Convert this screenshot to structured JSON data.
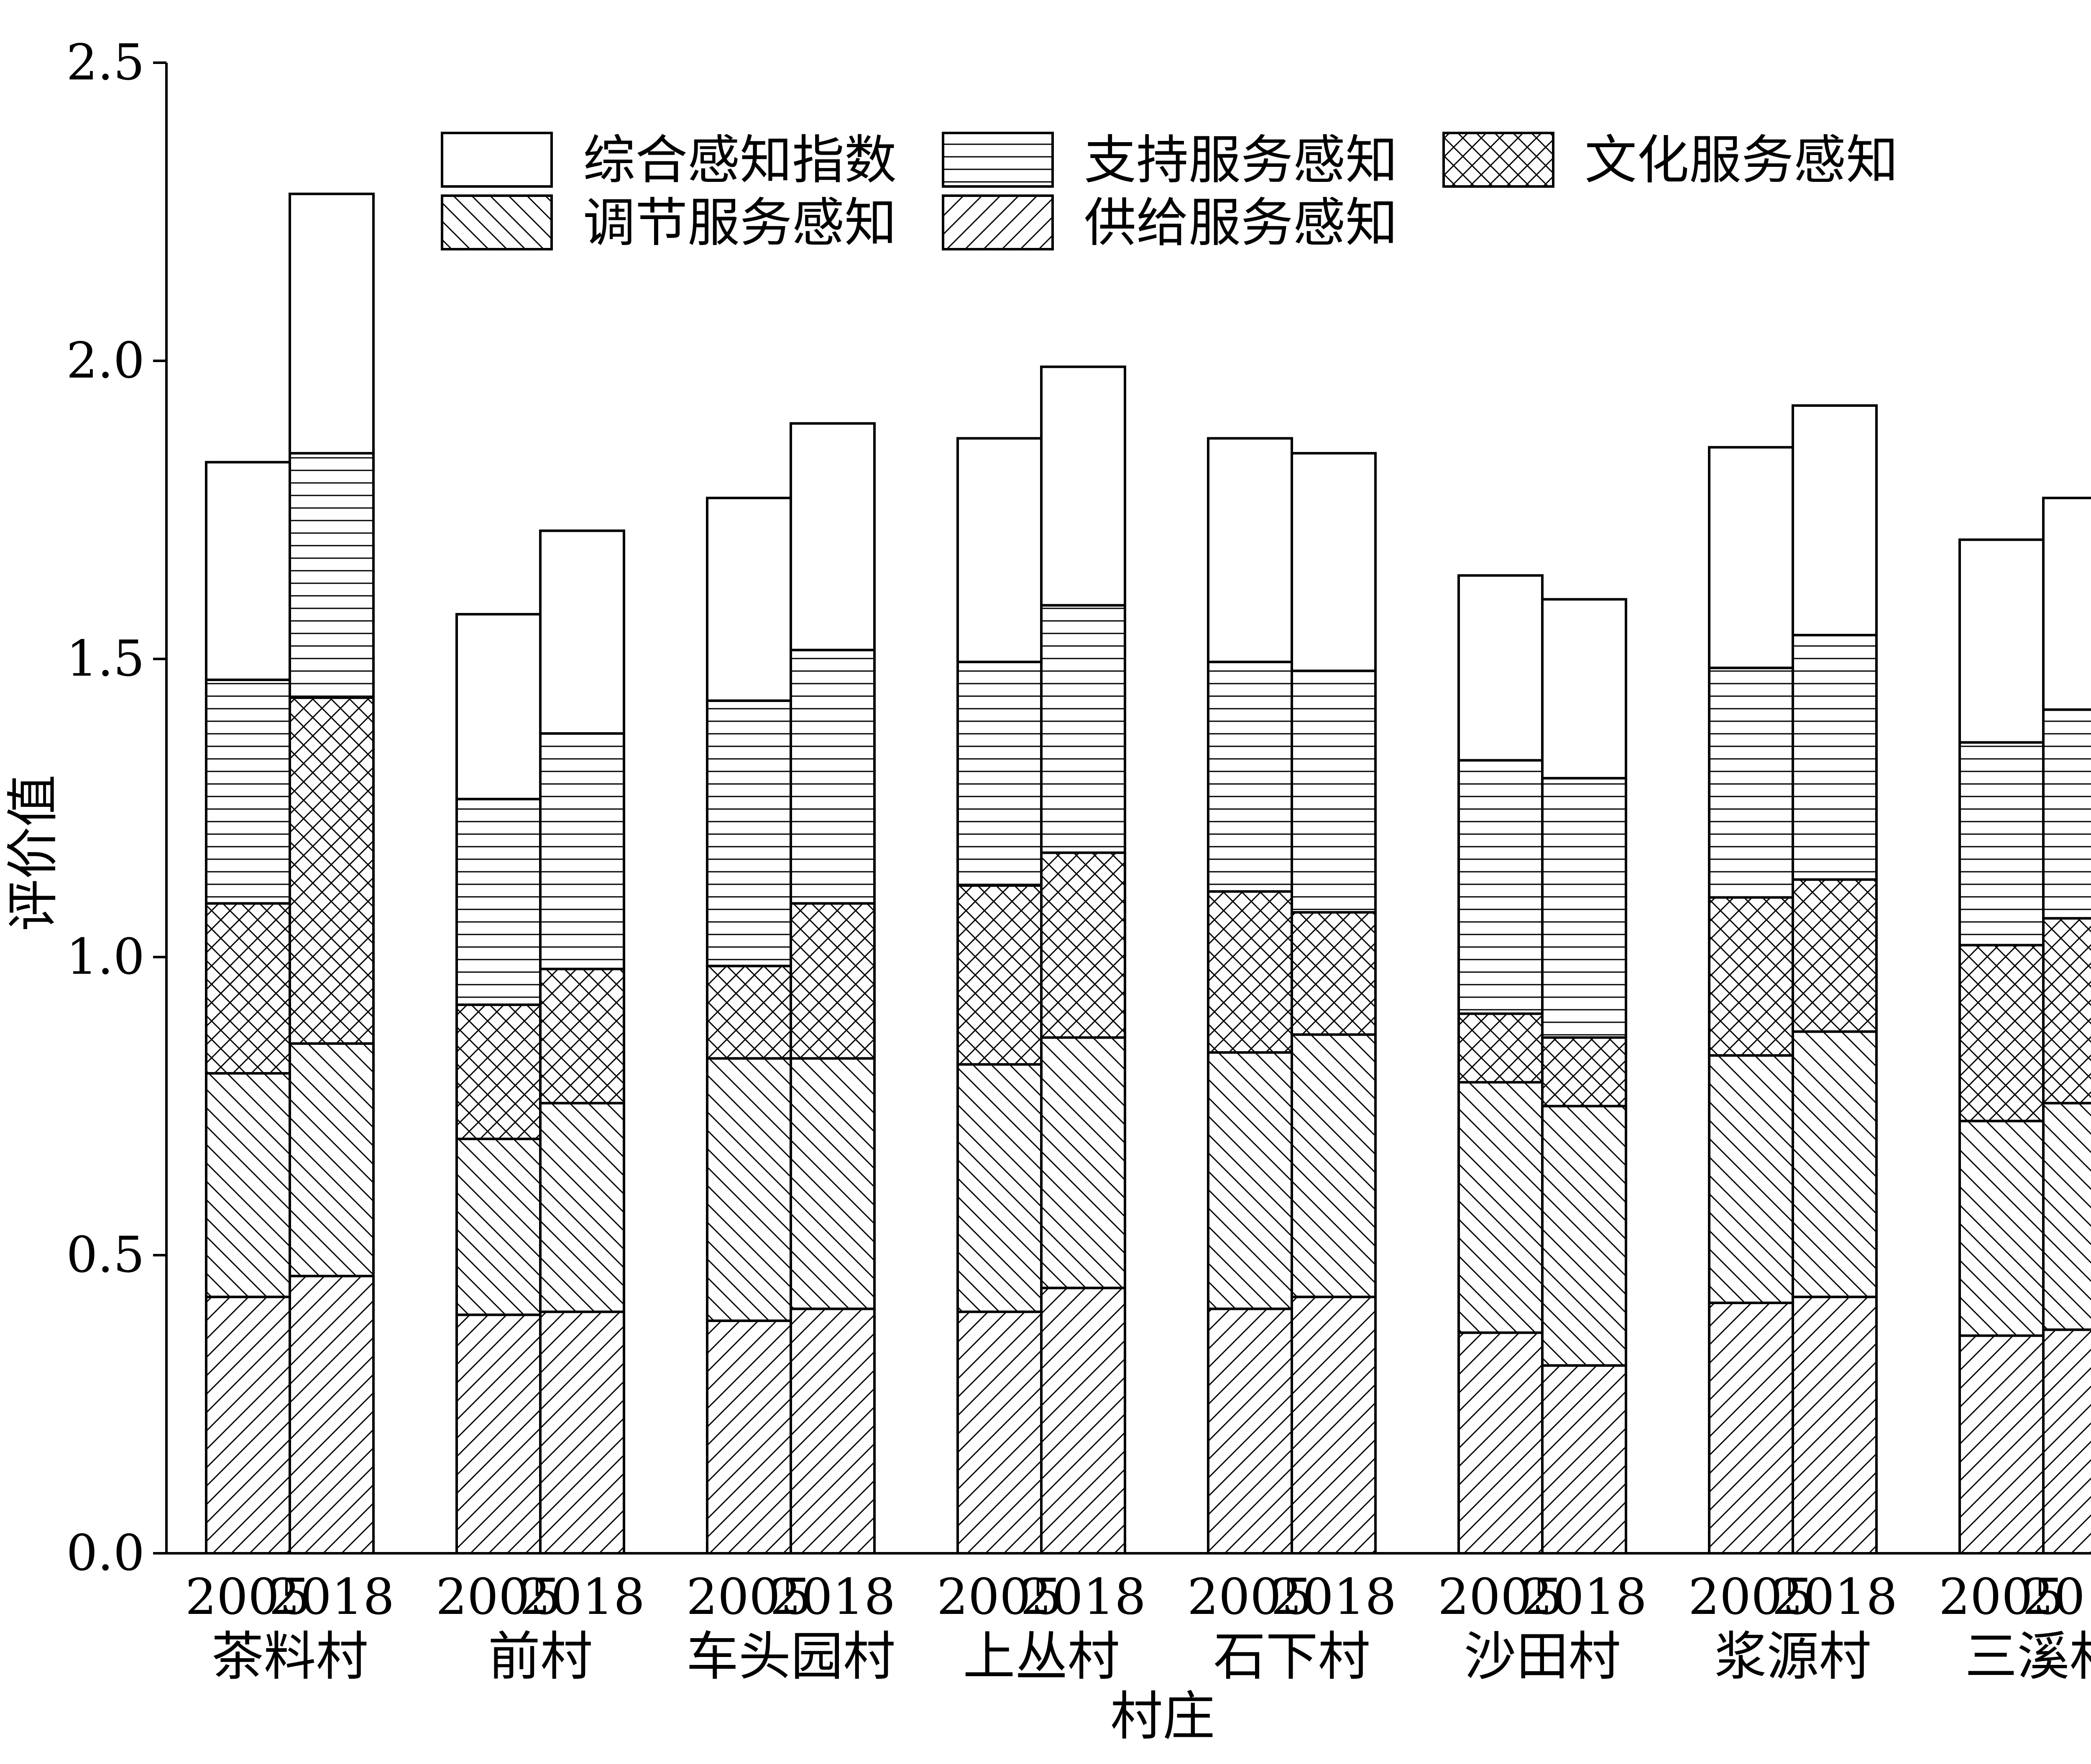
{
  "chart_data": {
    "type": "bar",
    "stacked": true,
    "title": "",
    "xlabel": "村庄",
    "ylabel": "评价值",
    "ylim": [
      0,
      2.5
    ],
    "yticks": [
      "0.0",
      "0.5",
      "1.0",
      "1.5",
      "2.0",
      "2.5"
    ],
    "grid": false,
    "legend_position": "top",
    "years": [
      "2005",
      "2018"
    ],
    "villages": [
      "茶料村",
      "前村",
      "车头园村",
      "上丛村",
      "石下村",
      "沙田村",
      "浆源村",
      "三溪村"
    ],
    "series": [
      {
        "name": "供给服务感知",
        "pattern": "diagonal-up",
        "values": [
          [
            0.43,
            0.465
          ],
          [
            0.4,
            0.405
          ],
          [
            0.39,
            0.41
          ],
          [
            0.405,
            0.445
          ],
          [
            0.41,
            0.43
          ],
          [
            0.37,
            0.315
          ],
          [
            0.42,
            0.43
          ],
          [
            0.365,
            0.375
          ]
        ]
      },
      {
        "name": "调节服务感知",
        "pattern": "diagonal-down",
        "values": [
          [
            0.375,
            0.39
          ],
          [
            0.295,
            0.35
          ],
          [
            0.44,
            0.42
          ],
          [
            0.415,
            0.42
          ],
          [
            0.43,
            0.44
          ],
          [
            0.42,
            0.435
          ],
          [
            0.415,
            0.445
          ],
          [
            0.36,
            0.38
          ]
        ]
      },
      {
        "name": "文化服务感知",
        "pattern": "crosshatch",
        "values": [
          [
            0.285,
            0.58
          ],
          [
            0.225,
            0.225
          ],
          [
            0.155,
            0.26
          ],
          [
            0.3,
            0.31
          ],
          [
            0.27,
            0.205
          ],
          [
            0.115,
            0.115
          ],
          [
            0.265,
            0.255
          ],
          [
            0.295,
            0.31
          ]
        ]
      },
      {
        "name": "支持服务感知",
        "pattern": "horizontal",
        "values": [
          [
            0.375,
            0.41
          ],
          [
            0.345,
            0.395
          ],
          [
            0.445,
            0.425
          ],
          [
            0.375,
            0.415
          ],
          [
            0.385,
            0.405
          ],
          [
            0.425,
            0.435
          ],
          [
            0.385,
            0.41
          ],
          [
            0.34,
            0.35
          ]
        ]
      },
      {
        "name": "综合感知指数",
        "pattern": "blank",
        "values": [
          [
            0.365,
            0.435
          ],
          [
            0.31,
            0.34
          ],
          [
            0.34,
            0.38
          ],
          [
            0.375,
            0.4
          ],
          [
            0.375,
            0.365
          ],
          [
            0.31,
            0.3
          ],
          [
            0.37,
            0.385
          ],
          [
            0.34,
            0.355
          ]
        ]
      }
    ],
    "legend_order": [
      "综合感知指数",
      "支持服务感知",
      "文化服务感知",
      "调节服务感知",
      "供给服务感知"
    ]
  }
}
